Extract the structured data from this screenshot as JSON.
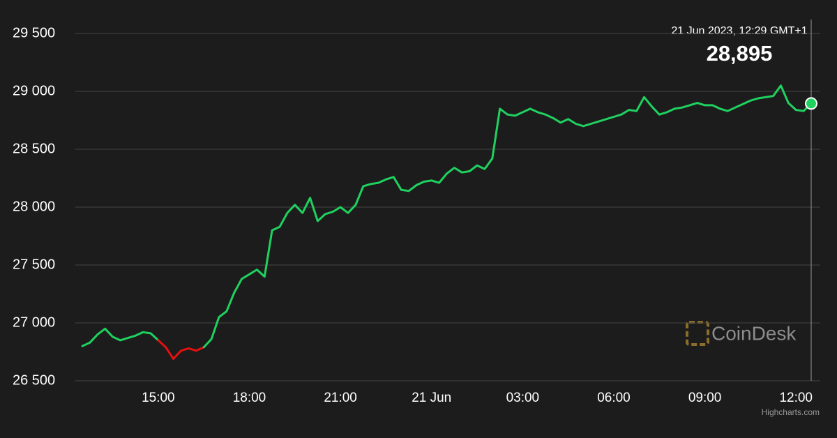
{
  "chart_data": {
    "type": "line",
    "categories": [
      null,
      null,
      null,
      null,
      null,
      null,
      null,
      null,
      null,
      null,
      "15:00",
      null,
      null,
      null,
      null,
      null,
      null,
      null,
      null,
      null,
      null,
      null,
      "18:00",
      null,
      null,
      null,
      null,
      null,
      null,
      null,
      null,
      null,
      null,
      null,
      "21:00",
      null,
      null,
      null,
      null,
      null,
      null,
      null,
      null,
      null,
      null,
      null,
      "21 Jun",
      null,
      null,
      null,
      null,
      null,
      null,
      null,
      null,
      null,
      null,
      null,
      "03:00",
      null,
      null,
      null,
      null,
      null,
      null,
      null,
      null,
      null,
      null,
      null,
      "06:00",
      null,
      null,
      null,
      null,
      null,
      null,
      null,
      null,
      null,
      null,
      null,
      "09:00",
      null,
      null,
      null,
      null,
      null,
      null,
      null,
      null,
      null,
      null,
      null,
      "12:00",
      null,
      null
    ],
    "series": [
      {
        "color": "#1fd15f",
        "down_color": "#e3110f",
        "values": [
          26800,
          26830,
          26900,
          26950,
          26880,
          26850,
          26870,
          26890,
          26920,
          26910,
          26850,
          26790,
          26690,
          26760,
          26780,
          26760,
          26790,
          26860,
          27050,
          27100,
          27260,
          27380,
          27420,
          27460,
          27400,
          27800,
          27830,
          27950,
          28020,
          27950,
          28080,
          27880,
          27940,
          27960,
          28000,
          27950,
          28020,
          28180,
          28200,
          28210,
          28240,
          28260,
          28150,
          28140,
          28190,
          28220,
          28230,
          28210,
          28290,
          28340,
          28300,
          28310,
          28360,
          28330,
          28420,
          28850,
          28800,
          28790,
          28820,
          28850,
          28820,
          28800,
          28770,
          28730,
          28760,
          28720,
          28700,
          28720,
          28740,
          28760,
          28780,
          28800,
          28840,
          28830,
          28950,
          28870,
          28800,
          28820,
          28850,
          28860,
          28880,
          28900,
          28880,
          28880,
          28850,
          28830,
          28860,
          28890,
          28920,
          28940,
          28950,
          28960,
          29050,
          28900,
          28840,
          28830,
          28895
        ]
      }
    ],
    "ylim": [
      26500,
      29500
    ],
    "yticks": [
      {
        "value": 26500,
        "label": "26 500"
      },
      {
        "value": 27000,
        "label": "27 000"
      },
      {
        "value": 27500,
        "label": "27 500"
      },
      {
        "value": 28000,
        "label": "28 000"
      },
      {
        "value": 28500,
        "label": "28 500"
      },
      {
        "value": 29000,
        "label": "29 000"
      },
      {
        "value": 29500,
        "label": "29 500"
      }
    ],
    "grid": true,
    "tooltip": {
      "date": "21 Jun 2023, 12:29 GMT+1",
      "value": 28895,
      "label": "28,895"
    },
    "watermark": "CoinDesk",
    "credits": "Highcharts.com"
  }
}
